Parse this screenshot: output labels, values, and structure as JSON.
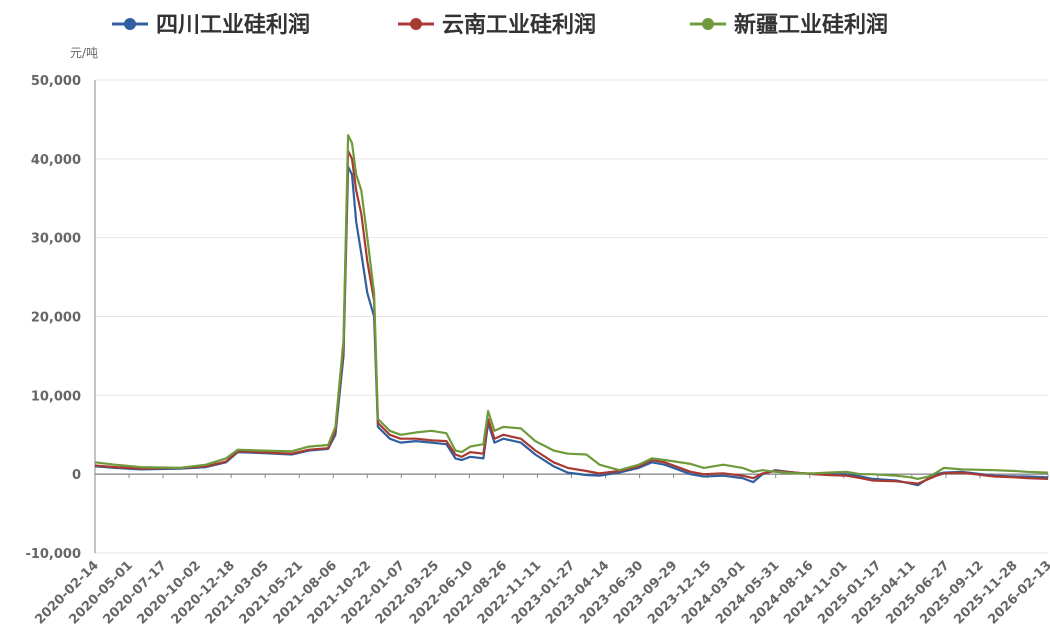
{
  "chart_data": {
    "type": "line",
    "unit_label": "元/吨",
    "ylim": [
      -10000,
      50000
    ],
    "y_ticks": [
      50000,
      40000,
      30000,
      20000,
      10000,
      0,
      -10000
    ],
    "y_tick_labels": [
      "50,000",
      "40,000",
      "30,000",
      "20,000",
      "10,000",
      "0",
      "-10,000"
    ],
    "x_tick_labels": [
      "2020-02-14",
      "2020-05-01",
      "2020-07-17",
      "2020-10-02",
      "2020-12-18",
      "2021-03-05",
      "2021-05-21",
      "2021-08-06",
      "2021-10-22",
      "2022-01-07",
      "2022-03-25",
      "2022-06-10",
      "2022-08-26",
      "2022-11-11",
      "2023-01-27",
      "2023-04-14",
      "2023-06-30",
      "2023-09-29",
      "2023-12-15",
      "2024-03-01",
      "2024-05-31",
      "2024-08-16",
      "2024-11-01",
      "2025-01-17",
      "2025-04-11",
      "2025-06-27",
      "2025-09-12",
      "2025-11-28",
      "2026-02-13"
    ],
    "grid": true,
    "legend_position": "top",
    "x_date_range": [
      "2020-02-14",
      "2026-04-03"
    ],
    "series": [
      {
        "name": "四川工业硅利润",
        "color": "#2f5f9e",
        "points": [
          [
            "2020-02-14",
            1000
          ],
          [
            "2020-04-01",
            800
          ],
          [
            "2020-06-01",
            600
          ],
          [
            "2020-09-01",
            700
          ],
          [
            "2020-11-01",
            900
          ],
          [
            "2020-12-18",
            1500
          ],
          [
            "2021-01-15",
            2800
          ],
          [
            "2021-03-05",
            2700
          ],
          [
            "2021-05-21",
            2500
          ],
          [
            "2021-07-01",
            3000
          ],
          [
            "2021-08-15",
            3200
          ],
          [
            "2021-09-01",
            5000
          ],
          [
            "2021-09-20",
            15000
          ],
          [
            "2021-10-01",
            39000
          ],
          [
            "2021-10-10",
            38000
          ],
          [
            "2021-10-20",
            32000
          ],
          [
            "2021-11-01",
            28000
          ],
          [
            "2021-11-15",
            23000
          ],
          [
            "2021-12-01",
            20000
          ],
          [
            "2021-12-10",
            6000
          ],
          [
            "2022-01-07",
            4500
          ],
          [
            "2022-02-01",
            4000
          ],
          [
            "2022-03-10",
            4200
          ],
          [
            "2022-04-15",
            4000
          ],
          [
            "2022-05-20",
            3800
          ],
          [
            "2022-06-10",
            2000
          ],
          [
            "2022-06-25",
            1800
          ],
          [
            "2022-07-15",
            2200
          ],
          [
            "2022-08-15",
            2000
          ],
          [
            "2022-08-26",
            6500
          ],
          [
            "2022-09-10",
            4000
          ],
          [
            "2022-10-01",
            4500
          ],
          [
            "2022-11-11",
            4000
          ],
          [
            "2022-12-15",
            2500
          ],
          [
            "2023-01-27",
            1000
          ],
          [
            "2023-03-01",
            200
          ],
          [
            "2023-04-14",
            -100
          ],
          [
            "2023-05-15",
            -200
          ],
          [
            "2023-06-30",
            200
          ],
          [
            "2023-08-15",
            800
          ],
          [
            "2023-09-15",
            1500
          ],
          [
            "2023-10-15",
            1200
          ],
          [
            "2023-12-15",
            0
          ],
          [
            "2024-01-15",
            -300
          ],
          [
            "2024-03-01",
            -200
          ],
          [
            "2024-04-15",
            -500
          ],
          [
            "2024-05-10",
            -1000
          ],
          [
            "2024-06-01",
            0
          ],
          [
            "2024-07-01",
            500
          ],
          [
            "2024-08-16",
            200
          ],
          [
            "2024-10-01",
            0
          ],
          [
            "2024-11-01",
            0
          ],
          [
            "2024-12-15",
            0
          ],
          [
            "2025-01-17",
            -300
          ],
          [
            "2025-02-15",
            -600
          ],
          [
            "2025-04-11",
            -800
          ],
          [
            "2025-05-15",
            -1200
          ],
          [
            "2025-06-01",
            -1400
          ],
          [
            "2025-06-27",
            -500
          ],
          [
            "2025-07-15",
            0
          ],
          [
            "2025-08-01",
            200
          ],
          [
            "2025-09-12",
            300
          ],
          [
            "2025-11-28",
            -200
          ],
          [
            "2026-01-15",
            -300
          ],
          [
            "2026-02-13",
            -300
          ],
          [
            "2026-04-03",
            -400
          ]
        ]
      },
      {
        "name": "云南工业硅利润",
        "color": "#a83a32",
        "points": [
          [
            "2020-02-14",
            1100
          ],
          [
            "2020-04-01",
            900
          ],
          [
            "2020-06-01",
            700
          ],
          [
            "2020-09-01",
            800
          ],
          [
            "2020-11-01",
            1000
          ],
          [
            "2020-12-18",
            1600
          ],
          [
            "2021-01-15",
            2900
          ],
          [
            "2021-03-05",
            2800
          ],
          [
            "2021-05-21",
            2600
          ],
          [
            "2021-07-01",
            3100
          ],
          [
            "2021-08-15",
            3300
          ],
          [
            "2021-09-01",
            5500
          ],
          [
            "2021-09-20",
            16000
          ],
          [
            "2021-10-01",
            41000
          ],
          [
            "2021-10-10",
            40000
          ],
          [
            "2021-10-20",
            36000
          ],
          [
            "2021-11-01",
            33000
          ],
          [
            "2021-11-15",
            27000
          ],
          [
            "2021-12-01",
            22000
          ],
          [
            "2021-12-10",
            6500
          ],
          [
            "2022-01-07",
            5000
          ],
          [
            "2022-02-01",
            4500
          ],
          [
            "2022-03-10",
            4500
          ],
          [
            "2022-04-15",
            4300
          ],
          [
            "2022-05-20",
            4200
          ],
          [
            "2022-06-10",
            2500
          ],
          [
            "2022-06-25",
            2200
          ],
          [
            "2022-07-15",
            2800
          ],
          [
            "2022-08-15",
            2600
          ],
          [
            "2022-08-26",
            7000
          ],
          [
            "2022-09-10",
            4500
          ],
          [
            "2022-10-01",
            5000
          ],
          [
            "2022-11-11",
            4500
          ],
          [
            "2022-12-15",
            3000
          ],
          [
            "2023-01-27",
            1500
          ],
          [
            "2023-03-01",
            800
          ],
          [
            "2023-04-14",
            400
          ],
          [
            "2023-05-15",
            100
          ],
          [
            "2023-06-30",
            400
          ],
          [
            "2023-08-15",
            1000
          ],
          [
            "2023-09-15",
            1800
          ],
          [
            "2023-10-15",
            1500
          ],
          [
            "2023-12-15",
            300
          ],
          [
            "2024-01-15",
            0
          ],
          [
            "2024-03-01",
            100
          ],
          [
            "2024-04-15",
            -200
          ],
          [
            "2024-05-10",
            -500
          ],
          [
            "2024-06-01",
            100
          ],
          [
            "2024-07-01",
            400
          ],
          [
            "2024-08-16",
            200
          ],
          [
            "2024-10-01",
            0
          ],
          [
            "2024-11-01",
            -100
          ],
          [
            "2024-12-15",
            -200
          ],
          [
            "2025-01-17",
            -500
          ],
          [
            "2025-02-15",
            -800
          ],
          [
            "2025-04-11",
            -900
          ],
          [
            "2025-05-15",
            -1100
          ],
          [
            "2025-06-01",
            -1200
          ],
          [
            "2025-06-27",
            -600
          ],
          [
            "2025-07-15",
            -200
          ],
          [
            "2025-08-01",
            100
          ],
          [
            "2025-09-12",
            200
          ],
          [
            "2025-11-28",
            -300
          ],
          [
            "2026-01-15",
            -400
          ],
          [
            "2026-02-13",
            -500
          ],
          [
            "2026-04-03",
            -600
          ]
        ]
      },
      {
        "name": "新疆工业硅利润",
        "color": "#6e9a3c",
        "points": [
          [
            "2020-02-14",
            1500
          ],
          [
            "2020-04-01",
            1200
          ],
          [
            "2020-06-01",
            900
          ],
          [
            "2020-09-01",
            800
          ],
          [
            "2020-11-01",
            1200
          ],
          [
            "2020-12-18",
            2000
          ],
          [
            "2021-01-15",
            3100
          ],
          [
            "2021-03-05",
            3000
          ],
          [
            "2021-05-21",
            2900
          ],
          [
            "2021-07-01",
            3500
          ],
          [
            "2021-08-15",
            3700
          ],
          [
            "2021-09-01",
            6000
          ],
          [
            "2021-09-20",
            17000
          ],
          [
            "2021-10-01",
            43000
          ],
          [
            "2021-10-10",
            42000
          ],
          [
            "2021-10-20",
            38000
          ],
          [
            "2021-11-01",
            36000
          ],
          [
            "2021-11-15",
            30000
          ],
          [
            "2021-12-01",
            23000
          ],
          [
            "2021-12-10",
            7000
          ],
          [
            "2022-01-07",
            5500
          ],
          [
            "2022-02-01",
            5000
          ],
          [
            "2022-03-10",
            5300
          ],
          [
            "2022-04-15",
            5500
          ],
          [
            "2022-05-20",
            5200
          ],
          [
            "2022-06-10",
            3000
          ],
          [
            "2022-06-25",
            2800
          ],
          [
            "2022-07-15",
            3500
          ],
          [
            "2022-08-15",
            3800
          ],
          [
            "2022-08-26",
            8000
          ],
          [
            "2022-09-10",
            5500
          ],
          [
            "2022-10-01",
            6000
          ],
          [
            "2022-11-11",
            5800
          ],
          [
            "2022-12-15",
            4200
          ],
          [
            "2023-01-27",
            3000
          ],
          [
            "2023-03-01",
            2600
          ],
          [
            "2023-04-14",
            2500
          ],
          [
            "2023-05-15",
            1200
          ],
          [
            "2023-06-30",
            500
          ],
          [
            "2023-08-15",
            1200
          ],
          [
            "2023-09-15",
            2000
          ],
          [
            "2023-10-15",
            1800
          ],
          [
            "2023-12-15",
            1300
          ],
          [
            "2024-01-15",
            800
          ],
          [
            "2024-03-01",
            1200
          ],
          [
            "2024-04-15",
            800
          ],
          [
            "2024-05-10",
            300
          ],
          [
            "2024-06-01",
            500
          ],
          [
            "2024-07-01",
            300
          ],
          [
            "2024-08-16",
            100
          ],
          [
            "2024-10-01",
            100
          ],
          [
            "2024-11-01",
            200
          ],
          [
            "2024-12-15",
            300
          ],
          [
            "2025-01-17",
            0
          ],
          [
            "2025-02-15",
            0
          ],
          [
            "2025-04-11",
            -200
          ],
          [
            "2025-05-15",
            -400
          ],
          [
            "2025-06-01",
            -600
          ],
          [
            "2025-06-27",
            -300
          ],
          [
            "2025-07-15",
            200
          ],
          [
            "2025-08-01",
            800
          ],
          [
            "2025-09-12",
            600
          ],
          [
            "2025-11-28",
            500
          ],
          [
            "2026-01-15",
            400
          ],
          [
            "2026-02-13",
            300
          ],
          [
            "2026-04-03",
            200
          ]
        ]
      }
    ]
  }
}
